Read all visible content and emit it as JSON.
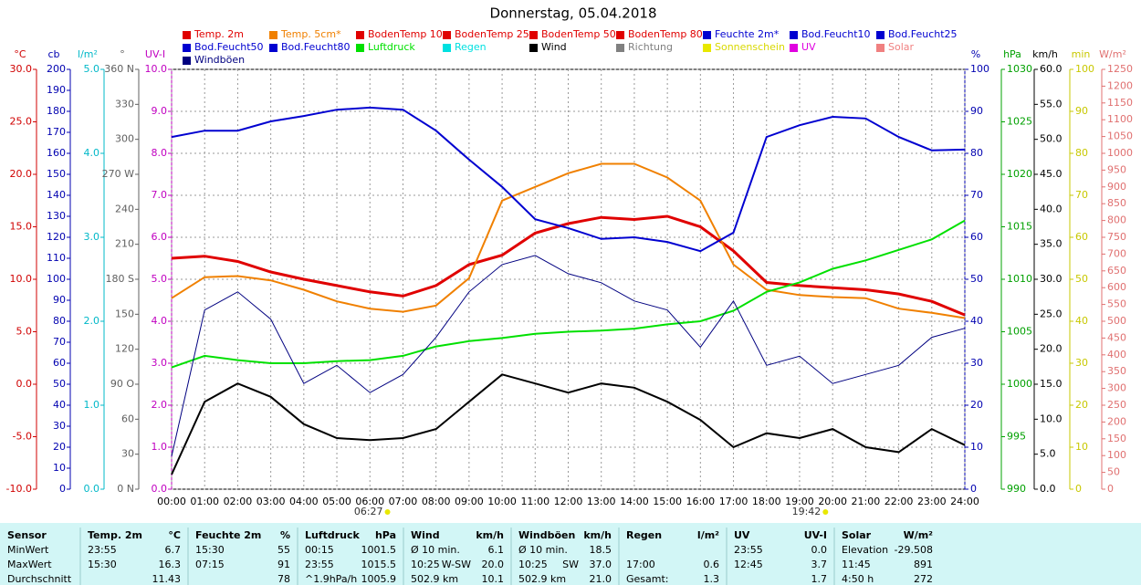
{
  "chart_data": {
    "type": "line",
    "title": "Donnerstag, 05.04.2018",
    "x": [
      "00:00",
      "01:00",
      "02:00",
      "03:00",
      "04:00",
      "05:00",
      "06:00",
      "07:00",
      "08:00",
      "09:00",
      "10:00",
      "11:00",
      "12:00",
      "13:00",
      "14:00",
      "15:00",
      "16:00",
      "17:00",
      "18:00",
      "19:00",
      "20:00",
      "21:00",
      "22:00",
      "23:00",
      "24:00"
    ],
    "xlim": [
      "00:00",
      "24:00"
    ],
    "grid": true,
    "axes": [
      {
        "name": "°C",
        "color": "#d00000",
        "side": "left",
        "lim": [
          -10,
          30
        ],
        "ticks": [
          {
            "value": 30,
            "label": "30.0"
          },
          {
            "value": 25,
            "label": "25.0"
          },
          {
            "value": 20,
            "label": "20.0"
          },
          {
            "value": 15,
            "label": "15.0"
          },
          {
            "value": 10,
            "label": "10.0"
          },
          {
            "value": 5,
            "label": "5.0"
          },
          {
            "value": 0,
            "label": "0.0"
          },
          {
            "value": -5,
            "label": "-5.0"
          },
          {
            "value": -10,
            "label": "-10.0"
          }
        ]
      },
      {
        "name": "cb",
        "color": "#0000b0",
        "side": "left",
        "lim": [
          0,
          200
        ],
        "ticks": [
          200,
          190,
          180,
          170,
          160,
          150,
          140,
          130,
          120,
          110,
          100,
          90,
          80,
          70,
          60,
          50,
          40,
          30,
          20,
          10,
          0
        ]
      },
      {
        "name": "l/m²",
        "color": "#00b8c8",
        "side": "left",
        "lim": [
          0,
          5
        ],
        "ticks": [
          {
            "value": 5,
            "label": "5.0"
          },
          {
            "value": 4,
            "label": "4.0"
          },
          {
            "value": 3,
            "label": "3.0"
          },
          {
            "value": 2,
            "label": "2.0"
          },
          {
            "value": 1,
            "label": "1.0"
          },
          {
            "value": 0,
            "label": "0.0"
          }
        ]
      },
      {
        "name": "°",
        "color": "#606060",
        "side": "left",
        "lim": [
          0,
          360
        ],
        "ticks": [
          {
            "value": 360,
            "label": "360 N"
          },
          330,
          300,
          {
            "value": 270,
            "label": "270 W"
          },
          240,
          210,
          {
            "value": 180,
            "label": "180 S"
          },
          150,
          120,
          {
            "value": 90,
            "label": "90 O"
          },
          60,
          30,
          {
            "value": 0,
            "label": "0 N"
          }
        ]
      },
      {
        "name": "UV-I",
        "color": "#c000c0",
        "side": "left",
        "lim": [
          0,
          10
        ],
        "ticks": [
          {
            "value": 10,
            "label": "10.0"
          },
          {
            "value": 9,
            "label": "9.0"
          },
          {
            "value": 8,
            "label": "8.0"
          },
          {
            "value": 7,
            "label": "7.0"
          },
          {
            "value": 6,
            "label": "6.0"
          },
          {
            "value": 5,
            "label": "5.0"
          },
          {
            "value": 4,
            "label": "4.0"
          },
          {
            "value": 3,
            "label": "3.0"
          },
          {
            "value": 2,
            "label": "2.0"
          },
          {
            "value": 1,
            "label": "1.0"
          },
          {
            "value": 0,
            "label": "0.0"
          }
        ]
      },
      {
        "name": "%",
        "color": "#0000b0",
        "side": "right",
        "lim": [
          0,
          100
        ],
        "ticks": [
          100,
          90,
          80,
          70,
          60,
          50,
          40,
          30,
          20,
          10,
          0
        ]
      },
      {
        "name": "hPa",
        "color": "#00a000",
        "side": "right",
        "lim": [
          990,
          1030
        ],
        "ticks": [
          1030,
          1025,
          1020,
          1015,
          1010,
          1005,
          1000,
          995,
          990
        ]
      },
      {
        "name": "km/h",
        "color": "#000000",
        "side": "right",
        "lim": [
          0,
          60
        ],
        "ticks": [
          {
            "value": 60,
            "label": "60.0"
          },
          {
            "value": 55,
            "label": "55.0"
          },
          {
            "value": 50,
            "label": "50.0"
          },
          {
            "value": 45,
            "label": "45.0"
          },
          {
            "value": 40,
            "label": "40.0"
          },
          {
            "value": 35,
            "label": "35.0"
          },
          {
            "value": 30,
            "label": "30.0"
          },
          {
            "value": 25,
            "label": "25.0"
          },
          {
            "value": 20,
            "label": "20.0"
          },
          {
            "value": 15,
            "label": "15.0"
          },
          {
            "value": 10,
            "label": "10.0"
          },
          {
            "value": 5,
            "label": "5.0"
          },
          {
            "value": 0,
            "label": "0.0"
          }
        ]
      },
      {
        "name": "min",
        "color": "#c8c800",
        "side": "right",
        "lim": [
          0,
          100
        ],
        "ticks": [
          100,
          90,
          80,
          70,
          60,
          50,
          40,
          30,
          20,
          10,
          0
        ]
      },
      {
        "name": "W/m²",
        "color": "#e07070",
        "side": "right",
        "lim": [
          0,
          1250
        ],
        "ticks": [
          1250,
          1200,
          1150,
          1100,
          1050,
          1000,
          950,
          900,
          850,
          800,
          750,
          700,
          650,
          600,
          550,
          500,
          450,
          400,
          350,
          300,
          250,
          200,
          150,
          100,
          50,
          0
        ]
      }
    ],
    "grid_axis": 4,
    "series": [
      {
        "name": "Temp. 2m",
        "color": "#e00000",
        "axis": 0,
        "width": 3,
        "values": [
          12.0,
          12.2,
          11.7,
          10.7,
          10.0,
          9.4,
          8.8,
          8.4,
          9.4,
          11.4,
          12.3,
          14.4,
          15.3,
          15.9,
          15.7,
          16.0,
          15.0,
          12.7,
          9.7,
          9.4,
          9.2,
          9.0,
          8.6,
          7.9,
          6.6
        ]
      },
      {
        "name": "Temp. 5cm*",
        "color": "#f08000",
        "axis": 0,
        "width": 2,
        "values": [
          8.2,
          10.2,
          10.3,
          9.9,
          9.0,
          7.9,
          7.2,
          6.9,
          7.5,
          10.1,
          17.5,
          18.8,
          20.1,
          21.0,
          21.0,
          19.7,
          17.5,
          11.4,
          9.0,
          8.5,
          8.3,
          8.2,
          7.2,
          6.8,
          6.3
        ]
      },
      {
        "name": "BodenTemp 10",
        "color": "#e00000"
      },
      {
        "name": "BodenTemp 25",
        "color": "#e00000"
      },
      {
        "name": "BodenTemp 50",
        "color": "#e00000"
      },
      {
        "name": "BodenTemp 80",
        "color": "#e00000"
      },
      {
        "name": "Feuchte 2m*",
        "color": "#0000d0",
        "axis": 5,
        "width": 2,
        "values": [
          83.9,
          85.4,
          85.4,
          87.6,
          88.9,
          90.4,
          90.9,
          90.4,
          85.4,
          78.5,
          72.0,
          64.3,
          62.2,
          59.6,
          60.0,
          58.9,
          56.7,
          61.1,
          83.9,
          86.7,
          88.7,
          88.3,
          83.9,
          80.7,
          80.9
        ]
      },
      {
        "name": "Bod.Feucht10",
        "color": "#0000d0"
      },
      {
        "name": "Bod.Feucht25",
        "color": "#0000d0"
      },
      {
        "name": "Bod.Feucht50",
        "color": "#0000d0"
      },
      {
        "name": "Bod.Feucht80",
        "color": "#0000d0"
      },
      {
        "name": "Luftdruck",
        "color": "#00e000",
        "axis": 6,
        "width": 2,
        "values": [
          1001.6,
          1002.7,
          1002.3,
          1002.0,
          1002.0,
          1002.2,
          1002.3,
          1002.7,
          1003.6,
          1004.1,
          1004.4,
          1004.8,
          1005.0,
          1005.1,
          1005.3,
          1005.7,
          1006.0,
          1007.0,
          1008.8,
          1009.7,
          1011.0,
          1011.8,
          1012.8,
          1013.8,
          1015.6
        ]
      },
      {
        "name": "Regen",
        "color": "#00e0e0"
      },
      {
        "name": "Wind",
        "color": "#000000",
        "axis": 7,
        "width": 2,
        "values": [
          2.1,
          12.5,
          15.1,
          13.2,
          9.3,
          7.3,
          7.0,
          7.3,
          8.6,
          12.5,
          16.4,
          15.1,
          13.8,
          15.1,
          14.5,
          12.5,
          9.9,
          6.0,
          8.0,
          7.3,
          8.6,
          6.0,
          5.3,
          8.6,
          6.3
        ]
      },
      {
        "name": "Richtung",
        "color": "#808080"
      },
      {
        "name": "Sonnenschein",
        "color": "#e8e800"
      },
      {
        "name": "UV",
        "color": "#e000e0"
      },
      {
        "name": "Solar",
        "color": "#f08080"
      },
      {
        "name": "Windböen",
        "color": "#000080",
        "axis": 7,
        "width": 1,
        "values": [
          4.7,
          25.6,
          28.2,
          24.3,
          15.1,
          17.7,
          13.8,
          16.4,
          21.7,
          28.2,
          32.1,
          33.4,
          30.8,
          29.5,
          26.9,
          25.6,
          20.3,
          26.9,
          17.7,
          19.0,
          15.1,
          16.4,
          17.7,
          21.7,
          23.0
        ]
      }
    ],
    "annotations": [
      {
        "text": "06:27"
      },
      {
        "text": "19:42"
      }
    ]
  },
  "table": {
    "header": [
      [
        "Sensor"
      ],
      [
        "Temp. 2m",
        "°C"
      ],
      [
        "Feuchte 2m",
        "%"
      ],
      [
        "Luftdruck",
        "hPa"
      ],
      [
        "Wind",
        "km/h"
      ],
      [
        "Windböen",
        "km/h"
      ],
      [
        "Regen",
        "l/m²"
      ],
      [
        "UV",
        "UV-I"
      ],
      [
        "Solar",
        "W/m²"
      ]
    ],
    "rows": [
      [
        [
          "MinWert"
        ],
        [
          "23:55",
          "6.7"
        ],
        [
          "15:30",
          "55"
        ],
        [
          "00:15",
          "1001.5"
        ],
        [
          "Ø 10 min.",
          "6.1"
        ],
        [
          "Ø 10 min.",
          "18.5"
        ],
        [],
        [
          "23:55",
          "0.0"
        ],
        [
          "Elevation",
          "-29.508"
        ]
      ],
      [
        [
          "MaxWert"
        ],
        [
          "15:30",
          "16.3"
        ],
        [
          "07:15",
          "91"
        ],
        [
          "23:55",
          "1015.5"
        ],
        [
          "10:25",
          "W-SW",
          "20.0"
        ],
        [
          "10:25",
          "SW",
          "37.0"
        ],
        [
          "17:00",
          "0.6"
        ],
        [
          "12:45",
          "3.7"
        ],
        [
          "11:45",
          "891"
        ]
      ],
      [
        [
          "Durchschnitt"
        ],
        [
          "11.43"
        ],
        [
          "78"
        ],
        [
          "^1.9hPa/h",
          "1005.9"
        ],
        [
          "502.9 km",
          "10.1"
        ],
        [
          "502.9 km",
          "21.0"
        ],
        [
          "Gesamt:",
          "1.3"
        ],
        [
          "1.7"
        ],
        [
          "4:50 h",
          "272"
        ]
      ]
    ]
  }
}
